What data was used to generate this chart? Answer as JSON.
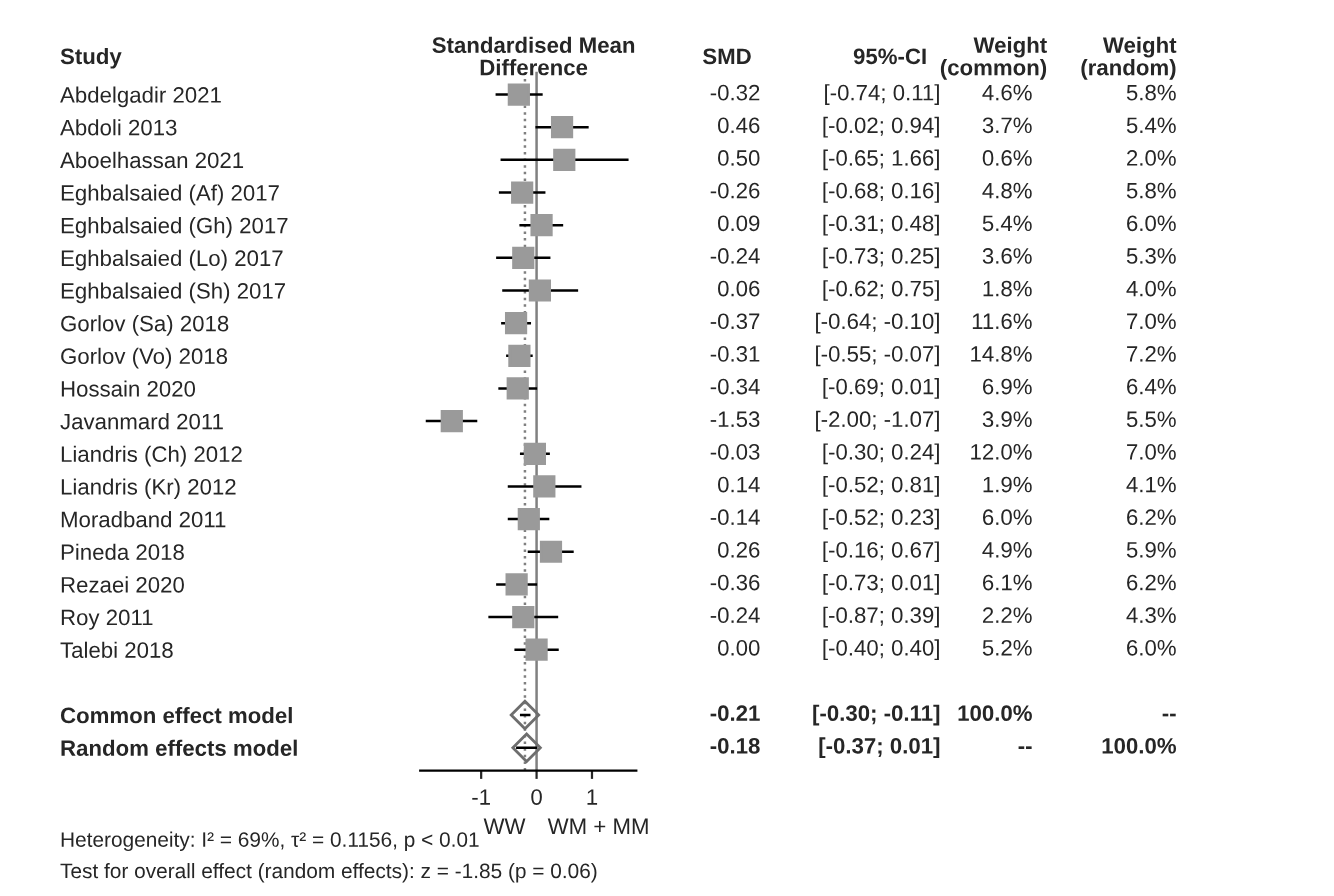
{
  "chart_data": {
    "type": "scatter",
    "orientation": "horizontal",
    "categories": [
      "Abdelgadir 2021",
      "Abdoli 2013",
      "Aboelhassan 2021",
      "Eghbalsaied (Af) 2017",
      "Eghbalsaied (Gh) 2017",
      "Eghbalsaied (Lo) 2017",
      "Eghbalsaied (Sh) 2017",
      "Gorlov (Sa) 2018",
      "Gorlov (Vo) 2018",
      "Hossain 2020",
      "Javanmard 2011",
      "Liandris (Ch) 2012",
      "Liandris (Kr) 2012",
      "Moradband 2011",
      "Pineda 2018",
      "Rezaei 2020",
      "Roy 2011",
      "Talebi 2018",
      null,
      "Common effect model",
      "Random effects model"
    ],
    "xlim": [
      -2.1,
      1.8
    ],
    "xticks": [
      -1,
      0,
      1
    ],
    "series": [
      {
        "color": "#9a9a9a",
        "marker": "square",
        "values": [
          -0.32,
          0.46,
          0.5,
          -0.26,
          0.09,
          -0.24,
          0.06,
          -0.37,
          -0.31,
          -0.34,
          -1.53,
          -0.03,
          0.14,
          -0.14,
          0.26,
          -0.36,
          -0.24,
          0.0,
          null,
          null,
          null
        ],
        "errors": [
          [
            -0.74,
            0.11
          ],
          [
            -0.02,
            0.94
          ],
          [
            -0.65,
            1.66
          ],
          [
            -0.68,
            0.16
          ],
          [
            -0.31,
            0.48
          ],
          [
            -0.73,
            0.25
          ],
          [
            -0.62,
            0.75
          ],
          [
            -0.64,
            -0.1
          ],
          [
            -0.55,
            -0.07
          ],
          [
            -0.69,
            0.01
          ],
          [
            -2.0,
            -1.07
          ],
          [
            -0.3,
            0.24
          ],
          [
            -0.52,
            0.81
          ],
          [
            -0.52,
            0.23
          ],
          [
            -0.16,
            0.67
          ],
          [
            -0.73,
            0.01
          ],
          [
            -0.87,
            0.39
          ],
          [
            -0.4,
            0.4
          ],
          null,
          null,
          null
        ],
        "value_labels": [
          "-0.32  [-0.74; 0.11]  4.6%  5.8%",
          "0.46  [-0.02; 0.94]  3.7%  5.4%",
          "0.50  [-0.65; 1.66]  0.6%  2.0%",
          "-0.26  [-0.68; 0.16]  4.8%  5.8%",
          "0.09  [-0.31; 0.48]  5.4%  6.0%",
          "-0.24  [-0.73; 0.25]  3.6%  5.3%",
          "0.06  [-0.62; 0.75]  1.8%  4.0%",
          "-0.37  [-0.64; -0.10]  11.6%  7.0%",
          "-0.31  [-0.55; -0.07]  14.8%  7.2%",
          "-0.34  [-0.69; 0.01]  6.9%  6.4%",
          "-1.53  [-2.00; -1.07]  3.9%  5.5%",
          "-0.03  [-0.30; 0.24]  12.0%  7.0%",
          "0.14  [-0.52; 0.81]  1.9%  4.1%",
          "-0.14  [-0.52; 0.23]  6.0%  6.2%",
          "0.26  [-0.16; 0.67]  4.9%  5.9%",
          "-0.36  [-0.73; 0.01]  6.1%  6.2%",
          "-0.24  [-0.87; 0.39]  2.2%  4.3%",
          "0.00  [-0.40; 0.40]  5.2%  6.0%",
          null,
          null,
          null
        ]
      },
      {
        "color": "#6e6e6e",
        "marker": "diamond",
        "values": [
          null,
          null,
          null,
          null,
          null,
          null,
          null,
          null,
          null,
          null,
          null,
          null,
          null,
          null,
          null,
          null,
          null,
          null,
          null,
          -0.21,
          -0.18
        ],
        "errors": [
          null,
          null,
          null,
          null,
          null,
          null,
          null,
          null,
          null,
          null,
          null,
          null,
          null,
          null,
          null,
          null,
          null,
          null,
          null,
          [
            -0.3,
            -0.11
          ],
          [
            -0.37,
            0.01
          ]
        ],
        "value_labels": [
          null,
          null,
          null,
          null,
          null,
          null,
          null,
          null,
          null,
          null,
          null,
          null,
          null,
          null,
          null,
          null,
          null,
          null,
          null,
          "-0.21  [-0.30; -0.11]  100.0%  --",
          "-0.18  [-0.37; 0.01]  --  100.0%"
        ]
      }
    ],
    "ref_lines": [
      {
        "axis": "x",
        "value": 0,
        "color": "#808080",
        "line_style": "solid"
      },
      {
        "axis": "x",
        "value": -0.21,
        "color": "#808080",
        "line_style": "dotted"
      }
    ],
    "annotations": [
      "Study",
      "Standardised Mean\nDifference",
      "SMD",
      "95%-CI",
      "Weight\n(common)",
      "Weight\n(random)",
      "WW",
      "WM + MM",
      "Heterogeneity: I² = 69%, τ² = 0.1156, p < 0.01",
      "Test for overall effect (random effects): z = -1.85 (p = 0.06)"
    ],
    "grid": false,
    "legend": false
  }
}
